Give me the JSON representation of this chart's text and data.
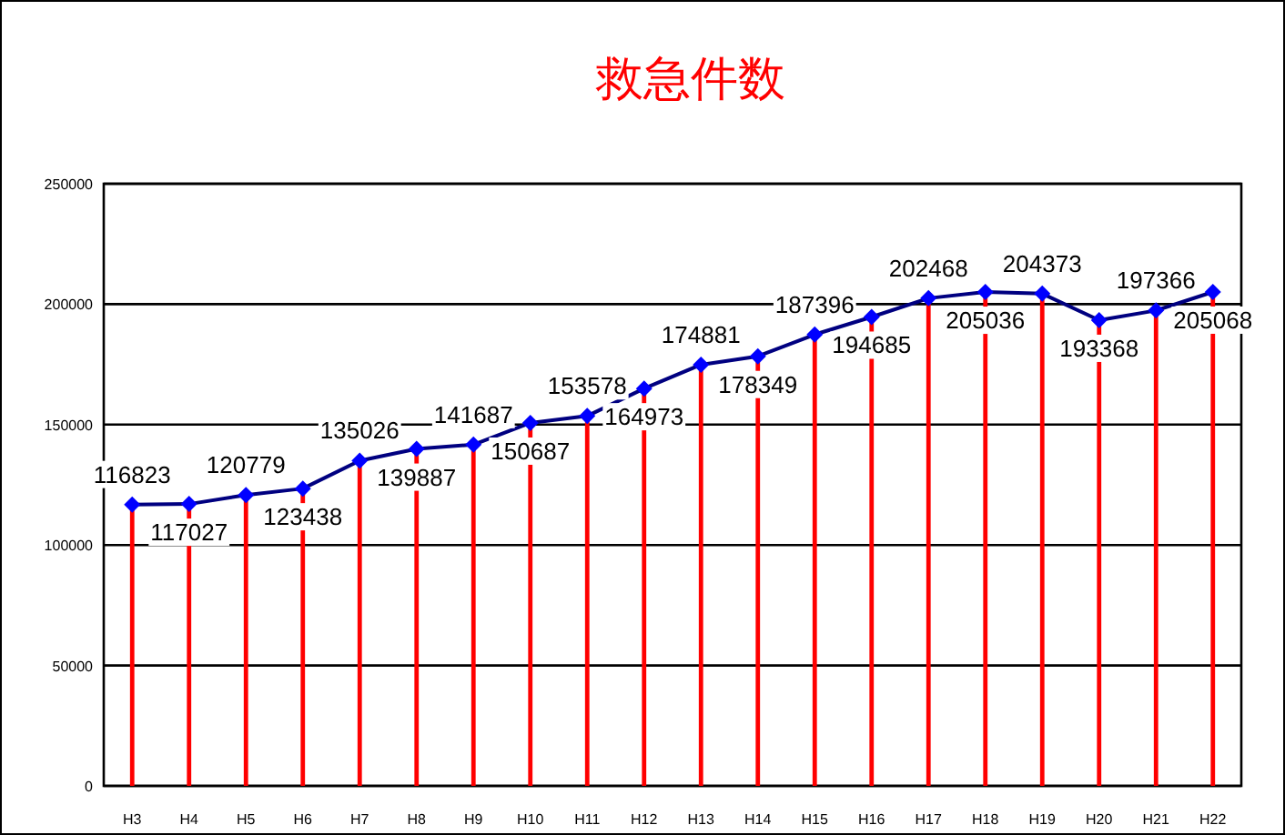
{
  "chart_data": {
    "type": "line",
    "title": "救急件数",
    "categories": [
      "H3",
      "H4",
      "H5",
      "H6",
      "H7",
      "H8",
      "H9",
      "H10",
      "H11",
      "H12",
      "H13",
      "H14",
      "H15",
      "H16",
      "H17",
      "H18",
      "H19",
      "H20",
      "H21",
      "H22"
    ],
    "series": [
      {
        "color": "#000080",
        "values": [
          116823,
          117027,
          120779,
          123438,
          135026,
          139887,
          141687,
          150687,
          153578,
          164973,
          174881,
          178349,
          187396,
          194685,
          202468,
          205036,
          204373,
          193368,
          197366,
          205068
        ],
        "value_labels": [
          "116823",
          "117027",
          "120779",
          "123438",
          "135026",
          "139887",
          "141687",
          "150687",
          "153578",
          "164973",
          "174881",
          "178349",
          "187396",
          "194685",
          "202468",
          "205036",
          "204373",
          "193368",
          "197366",
          "205068"
        ]
      },
      {
        "type": "bar",
        "color": "#ff0000",
        "values": [
          116823,
          117027,
          120779,
          123438,
          135026,
          139887,
          141687,
          150687,
          153578,
          164973,
          174881,
          178349,
          187396,
          194685,
          202468,
          205036,
          204373,
          193368,
          197366,
          205068
        ]
      }
    ],
    "ylim": [
      0,
      250000
    ],
    "yticks": [
      0,
      50000,
      100000,
      150000,
      200000,
      250000
    ],
    "grid": "y",
    "marker": "diamond"
  }
}
